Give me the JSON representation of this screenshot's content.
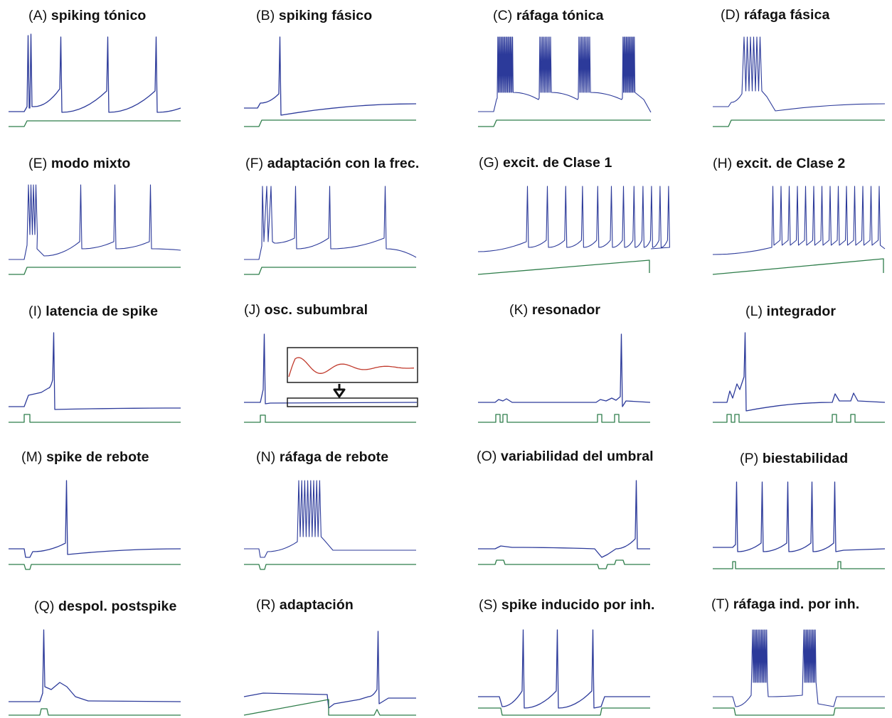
{
  "colors": {
    "voltage_trace": "#2c3a9a",
    "current_trace": "#2e7d4a",
    "inset_trace": "#c0392b",
    "background": "#ffffff"
  },
  "panels": [
    {
      "id": "A",
      "label": "(A)",
      "name": "spiking tónico",
      "kind": "tonic-spiking"
    },
    {
      "id": "B",
      "label": "(B)",
      "name": "spiking fásico",
      "kind": "phasic-spiking"
    },
    {
      "id": "C",
      "label": "(C)",
      "name": "ráfaga tónica",
      "kind": "tonic-bursting"
    },
    {
      "id": "D",
      "label": "(D)",
      "name": "ráfaga fásica",
      "kind": "phasic-bursting"
    },
    {
      "id": "E",
      "label": "(E)",
      "name": "modo mixto",
      "kind": "mixed-mode"
    },
    {
      "id": "F",
      "label": "(F)",
      "name": "adaptación con la frec.",
      "kind": "spike-frequency-adaptation"
    },
    {
      "id": "G",
      "label": "(G)",
      "name": "excit. de Clase 1",
      "kind": "class-1-excitability"
    },
    {
      "id": "H",
      "label": "(H)",
      "name": "excit. de Clase 2",
      "kind": "class-2-excitability"
    },
    {
      "id": "I",
      "label": "(I)",
      "name": "latencia de spike",
      "kind": "spike-latency"
    },
    {
      "id": "J",
      "label": "(J)",
      "name": "osc. subumbral",
      "kind": "subthreshold-oscillations"
    },
    {
      "id": "K",
      "label": "(K)",
      "name": "resonador",
      "kind": "resonator"
    },
    {
      "id": "L",
      "label": "(L)",
      "name": "integrador",
      "kind": "integrator"
    },
    {
      "id": "M",
      "label": "(M)",
      "name": "spike de rebote",
      "kind": "rebound-spike"
    },
    {
      "id": "N",
      "label": "(N)",
      "name": "ráfaga de rebote",
      "kind": "rebound-burst"
    },
    {
      "id": "O",
      "label": "(O)",
      "name": "variabilidad del umbral",
      "kind": "threshold-variability"
    },
    {
      "id": "P",
      "label": "(P)",
      "name": "biestabilidad",
      "kind": "bistability"
    },
    {
      "id": "Q",
      "label": "(Q)",
      "name": "despol. postspike",
      "kind": "depolarizing-after-potential"
    },
    {
      "id": "R",
      "label": "(R)",
      "name": "adaptación",
      "kind": "accommodation"
    },
    {
      "id": "S",
      "label": "(S)",
      "name": "spike inducido por inh.",
      "kind": "inhibition-induced-spiking"
    },
    {
      "id": "T",
      "label": "(T)",
      "name": "ráfaga ind. por inh.",
      "kind": "inhibition-induced-bursting"
    }
  ]
}
